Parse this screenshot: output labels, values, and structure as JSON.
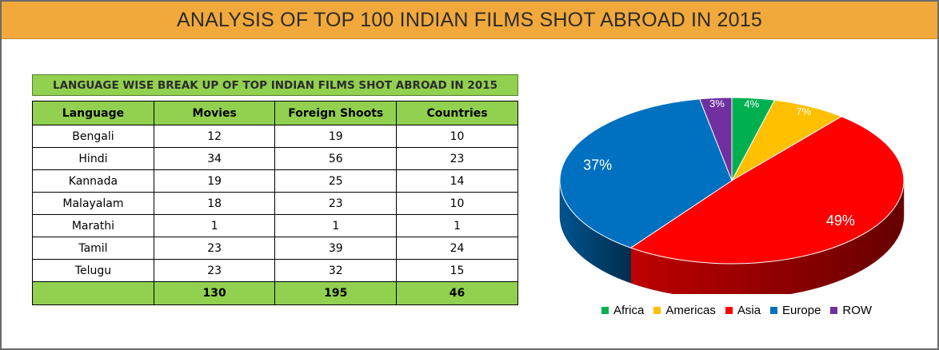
{
  "page_title": "ANALYSIS OF TOP 100 INDIAN FILMS SHOT ABROAD IN 2015",
  "table": {
    "title": "LANGUAGE WISE BREAK UP OF TOP INDIAN FILMS SHOT ABROAD IN 2015",
    "headers": [
      "Language",
      "Movies",
      "Foreign Shoots",
      "Countries"
    ],
    "rows": [
      [
        "Bengali",
        "12",
        "19",
        "10"
      ],
      [
        "Hindi",
        "34",
        "56",
        "23"
      ],
      [
        "Kannada",
        "19",
        "25",
        "14"
      ],
      [
        "Malayalam",
        "18",
        "23",
        "10"
      ],
      [
        "Marathi",
        "1",
        "1",
        "1"
      ],
      [
        "Tamil",
        "23",
        "39",
        "24"
      ],
      [
        "Telugu",
        "23",
        "32",
        "15"
      ]
    ],
    "totals": [
      "",
      "130",
      "195",
      "46"
    ]
  },
  "chart_data": [
    {
      "type": "table",
      "title": "LANGUAGE WISE BREAK UP OF TOP INDIAN FILMS SHOT ABROAD IN 2015",
      "columns": [
        "Language",
        "Movies",
        "Foreign Shoots",
        "Countries"
      ],
      "rows": [
        [
          "Bengali",
          12,
          19,
          10
        ],
        [
          "Hindi",
          34,
          56,
          23
        ],
        [
          "Kannada",
          19,
          25,
          14
        ],
        [
          "Malayalam",
          18,
          23,
          10
        ],
        [
          "Marathi",
          1,
          1,
          1
        ],
        [
          "Tamil",
          23,
          39,
          24
        ],
        [
          "Telugu",
          23,
          32,
          15
        ]
      ],
      "totals": [
        "",
        130,
        195,
        46
      ]
    },
    {
      "type": "pie",
      "categories": [
        "Africa",
        "Americas",
        "Asia",
        "Europe",
        "ROW"
      ],
      "values": [
        4,
        7,
        49,
        37,
        3
      ],
      "labels": [
        "4%",
        "7%",
        "49%",
        "37%",
        "3%"
      ],
      "colors": [
        "#00b050",
        "#ffc000",
        "#ff0000",
        "#0070c0",
        "#7030a0"
      ],
      "legend_position": "bottom",
      "style": "3d"
    }
  ]
}
